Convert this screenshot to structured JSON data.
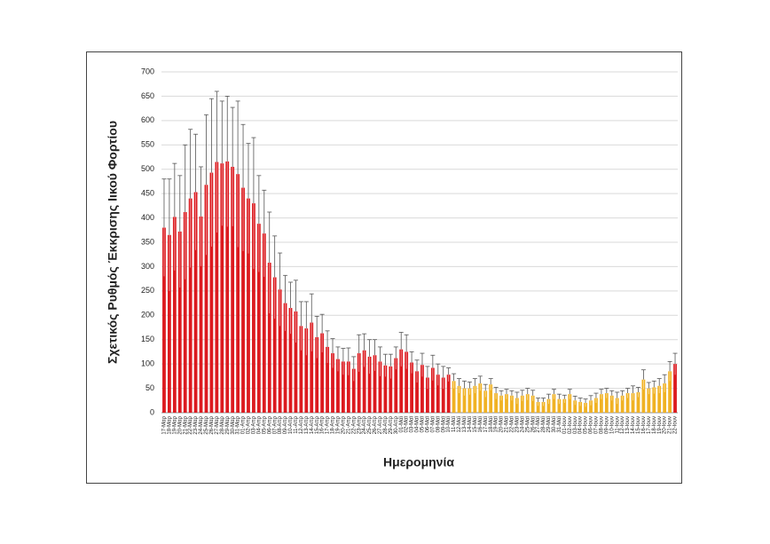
{
  "chart_data": {
    "type": "bar",
    "y_label": "Σχετικός Ρυθμός Έκκρισης Ιικού Φορτίου",
    "x_label": "Ημερομηνία",
    "categories": [
      "17-Μαρ",
      "18-Μαρ",
      "19-Μαρ",
      "20-Μαρ",
      "21-Μαρ",
      "22-Μαρ",
      "23-Μαρ",
      "24-Μαρ",
      "25-Μαρ",
      "26-Μαρ",
      "27-Μαρ",
      "28-Μαρ",
      "29-Μαρ",
      "30-Μαρ",
      "31-Μαρ",
      "01-Απρ",
      "02-Απρ",
      "03-Απρ",
      "04-Απρ",
      "05-Απρ",
      "06-Απρ",
      "07-Απρ",
      "08-Απρ",
      "09-Απρ",
      "10-Απρ",
      "11-Απρ",
      "12-Απρ",
      "13-Απρ",
      "14-Απρ",
      "15-Απρ",
      "16-Απρ",
      "17-Απρ",
      "18-Απρ",
      "19-Απρ",
      "20-Απρ",
      "21-Απρ",
      "22-Απρ",
      "23-Απρ",
      "24-Απρ",
      "25-Απρ",
      "26-Απρ",
      "27-Απρ",
      "28-Απρ",
      "29-Απρ",
      "30-Απρ",
      "01-Μαϊ",
      "02-Μαϊ",
      "03-Μαϊ",
      "04-Μαϊ",
      "05-Μαϊ",
      "06-Μαϊ",
      "07-Μαϊ",
      "08-Μαϊ",
      "09-Μαϊ",
      "10-Μαϊ",
      "11-Μαϊ",
      "12-Μαϊ",
      "13-Μαϊ",
      "14-Μαϊ",
      "15-Μαϊ",
      "16-Μαϊ",
      "17-Μαϊ",
      "18-Μαϊ",
      "19-Μαϊ",
      "20-Μαϊ",
      "21-Μαϊ",
      "22-Μαϊ",
      "23-Μαϊ",
      "24-Μαϊ",
      "25-Μαϊ",
      "26-Μαϊ",
      "27-Μαϊ",
      "28-Μαϊ",
      "29-Μαϊ",
      "30-Μαϊ",
      "31-Μαϊ",
      "01-Ιουν",
      "02-Ιουν",
      "03-Ιουν",
      "04-Ιουν",
      "05-Ιουν",
      "06-Ιουν",
      "07-Ιουν",
      "08-Ιουν",
      "09-Ιουν",
      "10-Ιουν",
      "11-Ιουν",
      "12-Ιουν",
      "13-Ιουν",
      "14-Ιουν",
      "15-Ιουν",
      "16-Ιουν",
      "17-Ιουν",
      "18-Ιουν",
      "19-Ιουν",
      "20-Ιουν",
      "21-Ιουν",
      "22-Ιουν"
    ],
    "values": [
      380,
      365,
      402,
      372,
      412,
      440,
      453,
      403,
      468,
      493,
      515,
      512,
      516,
      505,
      490,
      462,
      440,
      430,
      388,
      368,
      308,
      278,
      253,
      225,
      215,
      208,
      178,
      173,
      185,
      155,
      163,
      135,
      122,
      110,
      105,
      105,
      90,
      122,
      128,
      115,
      118,
      105,
      97,
      95,
      112,
      130,
      125,
      103,
      85,
      98,
      72,
      92,
      78,
      72,
      78,
      65,
      55,
      50,
      50,
      55,
      60,
      45,
      58,
      40,
      35,
      38,
      35,
      30,
      35,
      38,
      35,
      22,
      22,
      28,
      38,
      28,
      28,
      38,
      25,
      22,
      20,
      25,
      30,
      38,
      40,
      35,
      30,
      35,
      40,
      40,
      42,
      68,
      50,
      52,
      55,
      60,
      85,
      100
    ],
    "errors": [
      100,
      115,
      110,
      115,
      138,
      142,
      119,
      102,
      144,
      152,
      145,
      128,
      134,
      122,
      150,
      130,
      113,
      135,
      99,
      89,
      104,
      85,
      75,
      57,
      53,
      64,
      50,
      55,
      59,
      43,
      39,
      33,
      30,
      25,
      27,
      28,
      25,
      38,
      34,
      35,
      32,
      30,
      23,
      25,
      23,
      35,
      35,
      22,
      23,
      24,
      23,
      26,
      22,
      23,
      14,
      15,
      15,
      15,
      13,
      15,
      15,
      13,
      12,
      12,
      10,
      10,
      10,
      12,
      11,
      12,
      11,
      8,
      8,
      10,
      10,
      10,
      8,
      10,
      9,
      8,
      8,
      10,
      10,
      10,
      10,
      10,
      12,
      10,
      10,
      15,
      10,
      20,
      12,
      13,
      15,
      18,
      20,
      22
    ],
    "colors": [
      "#dc1a1f",
      "#dc1a1f",
      "#dc1a1f",
      "#dc1a1f",
      "#dc1a1f",
      "#dc1a1f",
      "#dc1a1f",
      "#dc1a1f",
      "#dc1a1f",
      "#dc1a1f",
      "#dc1a1f",
      "#dc1a1f",
      "#dc1a1f",
      "#dc1a1f",
      "#dc1a1f",
      "#dc1a1f",
      "#dc1a1f",
      "#dc1a1f",
      "#dc1a1f",
      "#dc1a1f",
      "#dc1a1f",
      "#dc1a1f",
      "#dc1a1f",
      "#dc1a1f",
      "#dc1a1f",
      "#dc1a1f",
      "#dc1a1f",
      "#dc1a1f",
      "#dc1a1f",
      "#dc1a1f",
      "#dc1a1f",
      "#dc1a1f",
      "#dc1a1f",
      "#dc1a1f",
      "#dc1a1f",
      "#dc1a1f",
      "#dc1a1f",
      "#dc1a1f",
      "#dc1a1f",
      "#dc1a1f",
      "#dc1a1f",
      "#dc1a1f",
      "#dc1a1f",
      "#dc1a1f",
      "#dc1a1f",
      "#dc1a1f",
      "#dc1a1f",
      "#dc1a1f",
      "#dc1a1f",
      "#dc1a1f",
      "#dc1a1f",
      "#dc1a1f",
      "#dc1a1f",
      "#dc1a1f",
      "#dc1a1f",
      "#f0b224",
      "#f0b224",
      "#f0b224",
      "#f0b224",
      "#f0b224",
      "#f0b224",
      "#f0b224",
      "#f0b224",
      "#f0b224",
      "#f0b224",
      "#f0b224",
      "#f0b224",
      "#f0b224",
      "#f0b224",
      "#f0b224",
      "#f0b224",
      "#f0b224",
      "#f0b224",
      "#f0b224",
      "#f0b224",
      "#f0b224",
      "#f0b224",
      "#f0b224",
      "#f0b224",
      "#f0b224",
      "#f0b224",
      "#f0b224",
      "#f0b224",
      "#f0b224",
      "#f0b224",
      "#f0b224",
      "#f0b224",
      "#f0b224",
      "#f0b224",
      "#f0b224",
      "#f0b224",
      "#f0b224",
      "#f0b224",
      "#f0b224",
      "#f0b224",
      "#f0b224",
      "#f0b224",
      "#dc1a1f"
    ],
    "ylim": [
      0,
      700
    ],
    "yticks": [
      0,
      50,
      100,
      150,
      200,
      250,
      300,
      350,
      400,
      450,
      500,
      550,
      600,
      650,
      700
    ],
    "grid": true
  }
}
